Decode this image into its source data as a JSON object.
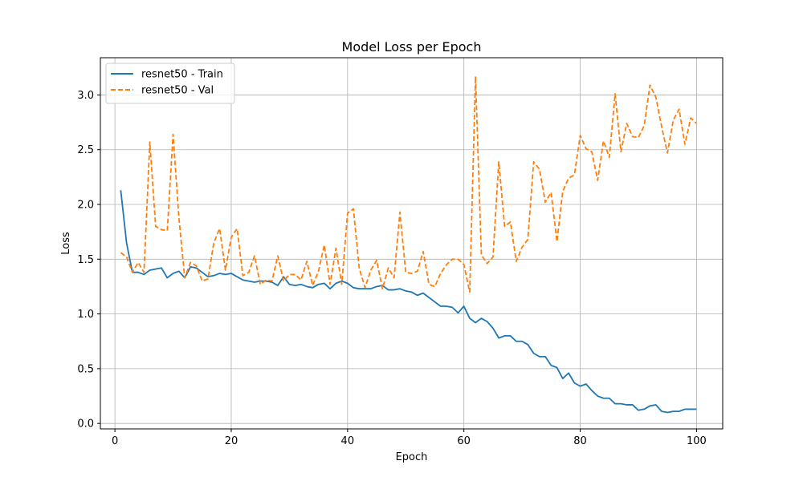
{
  "chart_data": {
    "type": "line",
    "title": "Model Loss per Epoch",
    "xlabel": "Epoch",
    "ylabel": "Loss",
    "xlim": [
      -2.5,
      104.5
    ],
    "ylim": [
      -0.05,
      3.34
    ],
    "xticks": [
      0,
      20,
      40,
      60,
      80,
      100
    ],
    "yticks": [
      0.0,
      0.5,
      1.0,
      1.5,
      2.0,
      2.5,
      3.0
    ],
    "xtick_labels": [
      "0",
      "20",
      "40",
      "60",
      "80",
      "100"
    ],
    "ytick_labels": [
      "0.0",
      "0.5",
      "1.0",
      "1.5",
      "2.0",
      "2.5",
      "3.0"
    ],
    "grid": true,
    "legend_position": "top-left",
    "x": [
      1,
      2,
      3,
      4,
      5,
      6,
      7,
      8,
      9,
      10,
      11,
      12,
      13,
      14,
      15,
      16,
      17,
      18,
      19,
      20,
      21,
      22,
      23,
      24,
      25,
      26,
      27,
      28,
      29,
      30,
      31,
      32,
      33,
      34,
      35,
      36,
      37,
      38,
      39,
      40,
      41,
      42,
      43,
      44,
      45,
      46,
      47,
      48,
      49,
      50,
      51,
      52,
      53,
      54,
      55,
      56,
      57,
      58,
      59,
      60,
      61,
      62,
      63,
      64,
      65,
      66,
      67,
      68,
      69,
      70,
      71,
      72,
      73,
      74,
      75,
      76,
      77,
      78,
      79,
      80,
      81,
      82,
      83,
      84,
      85,
      86,
      87,
      88,
      89,
      90,
      91,
      92,
      93,
      94,
      95,
      96,
      97,
      98,
      99,
      100
    ],
    "series": [
      {
        "name": "resnet50 - Train",
        "color": "#1f77b4",
        "dash": "solid",
        "values": [
          2.13,
          1.65,
          1.38,
          1.38,
          1.36,
          1.4,
          1.41,
          1.42,
          1.33,
          1.37,
          1.39,
          1.33,
          1.43,
          1.42,
          1.38,
          1.34,
          1.35,
          1.37,
          1.36,
          1.37,
          1.34,
          1.31,
          1.3,
          1.29,
          1.3,
          1.3,
          1.29,
          1.26,
          1.34,
          1.27,
          1.26,
          1.27,
          1.25,
          1.24,
          1.27,
          1.28,
          1.23,
          1.28,
          1.3,
          1.28,
          1.24,
          1.23,
          1.23,
          1.23,
          1.25,
          1.26,
          1.22,
          1.22,
          1.23,
          1.21,
          1.2,
          1.17,
          1.19,
          1.15,
          1.11,
          1.07,
          1.07,
          1.06,
          1.01,
          1.07,
          0.96,
          0.92,
          0.96,
          0.93,
          0.87,
          0.78,
          0.8,
          0.8,
          0.75,
          0.75,
          0.72,
          0.64,
          0.61,
          0.61,
          0.53,
          0.51,
          0.41,
          0.46,
          0.37,
          0.34,
          0.36,
          0.3,
          0.25,
          0.23,
          0.23,
          0.18,
          0.18,
          0.17,
          0.17,
          0.12,
          0.13,
          0.16,
          0.17,
          0.11,
          0.1,
          0.11,
          0.11,
          0.13,
          0.13,
          0.13
        ]
      },
      {
        "name": "resnet50 - Val",
        "color": "#ff7f0e",
        "dash": "dashed",
        "values": [
          1.56,
          1.52,
          1.38,
          1.47,
          1.38,
          2.57,
          1.8,
          1.77,
          1.76,
          2.64,
          1.88,
          1.33,
          1.47,
          1.44,
          1.3,
          1.32,
          1.65,
          1.78,
          1.4,
          1.7,
          1.78,
          1.35,
          1.38,
          1.53,
          1.27,
          1.31,
          1.3,
          1.53,
          1.3,
          1.36,
          1.36,
          1.31,
          1.48,
          1.26,
          1.39,
          1.63,
          1.27,
          1.6,
          1.27,
          1.92,
          1.96,
          1.42,
          1.24,
          1.4,
          1.49,
          1.23,
          1.42,
          1.33,
          1.93,
          1.38,
          1.37,
          1.39,
          1.57,
          1.27,
          1.25,
          1.37,
          1.45,
          1.5,
          1.5,
          1.45,
          1.2,
          3.17,
          1.54,
          1.46,
          1.52,
          2.39,
          1.8,
          1.84,
          1.48,
          1.61,
          1.68,
          2.39,
          2.32,
          2.02,
          2.11,
          1.66,
          2.12,
          2.24,
          2.27,
          2.63,
          2.51,
          2.48,
          2.22,
          2.58,
          2.43,
          3.01,
          2.48,
          2.74,
          2.62,
          2.61,
          2.72,
          3.09,
          2.98,
          2.71,
          2.47,
          2.77,
          2.87,
          2.55,
          2.79,
          2.74
        ]
      }
    ]
  }
}
